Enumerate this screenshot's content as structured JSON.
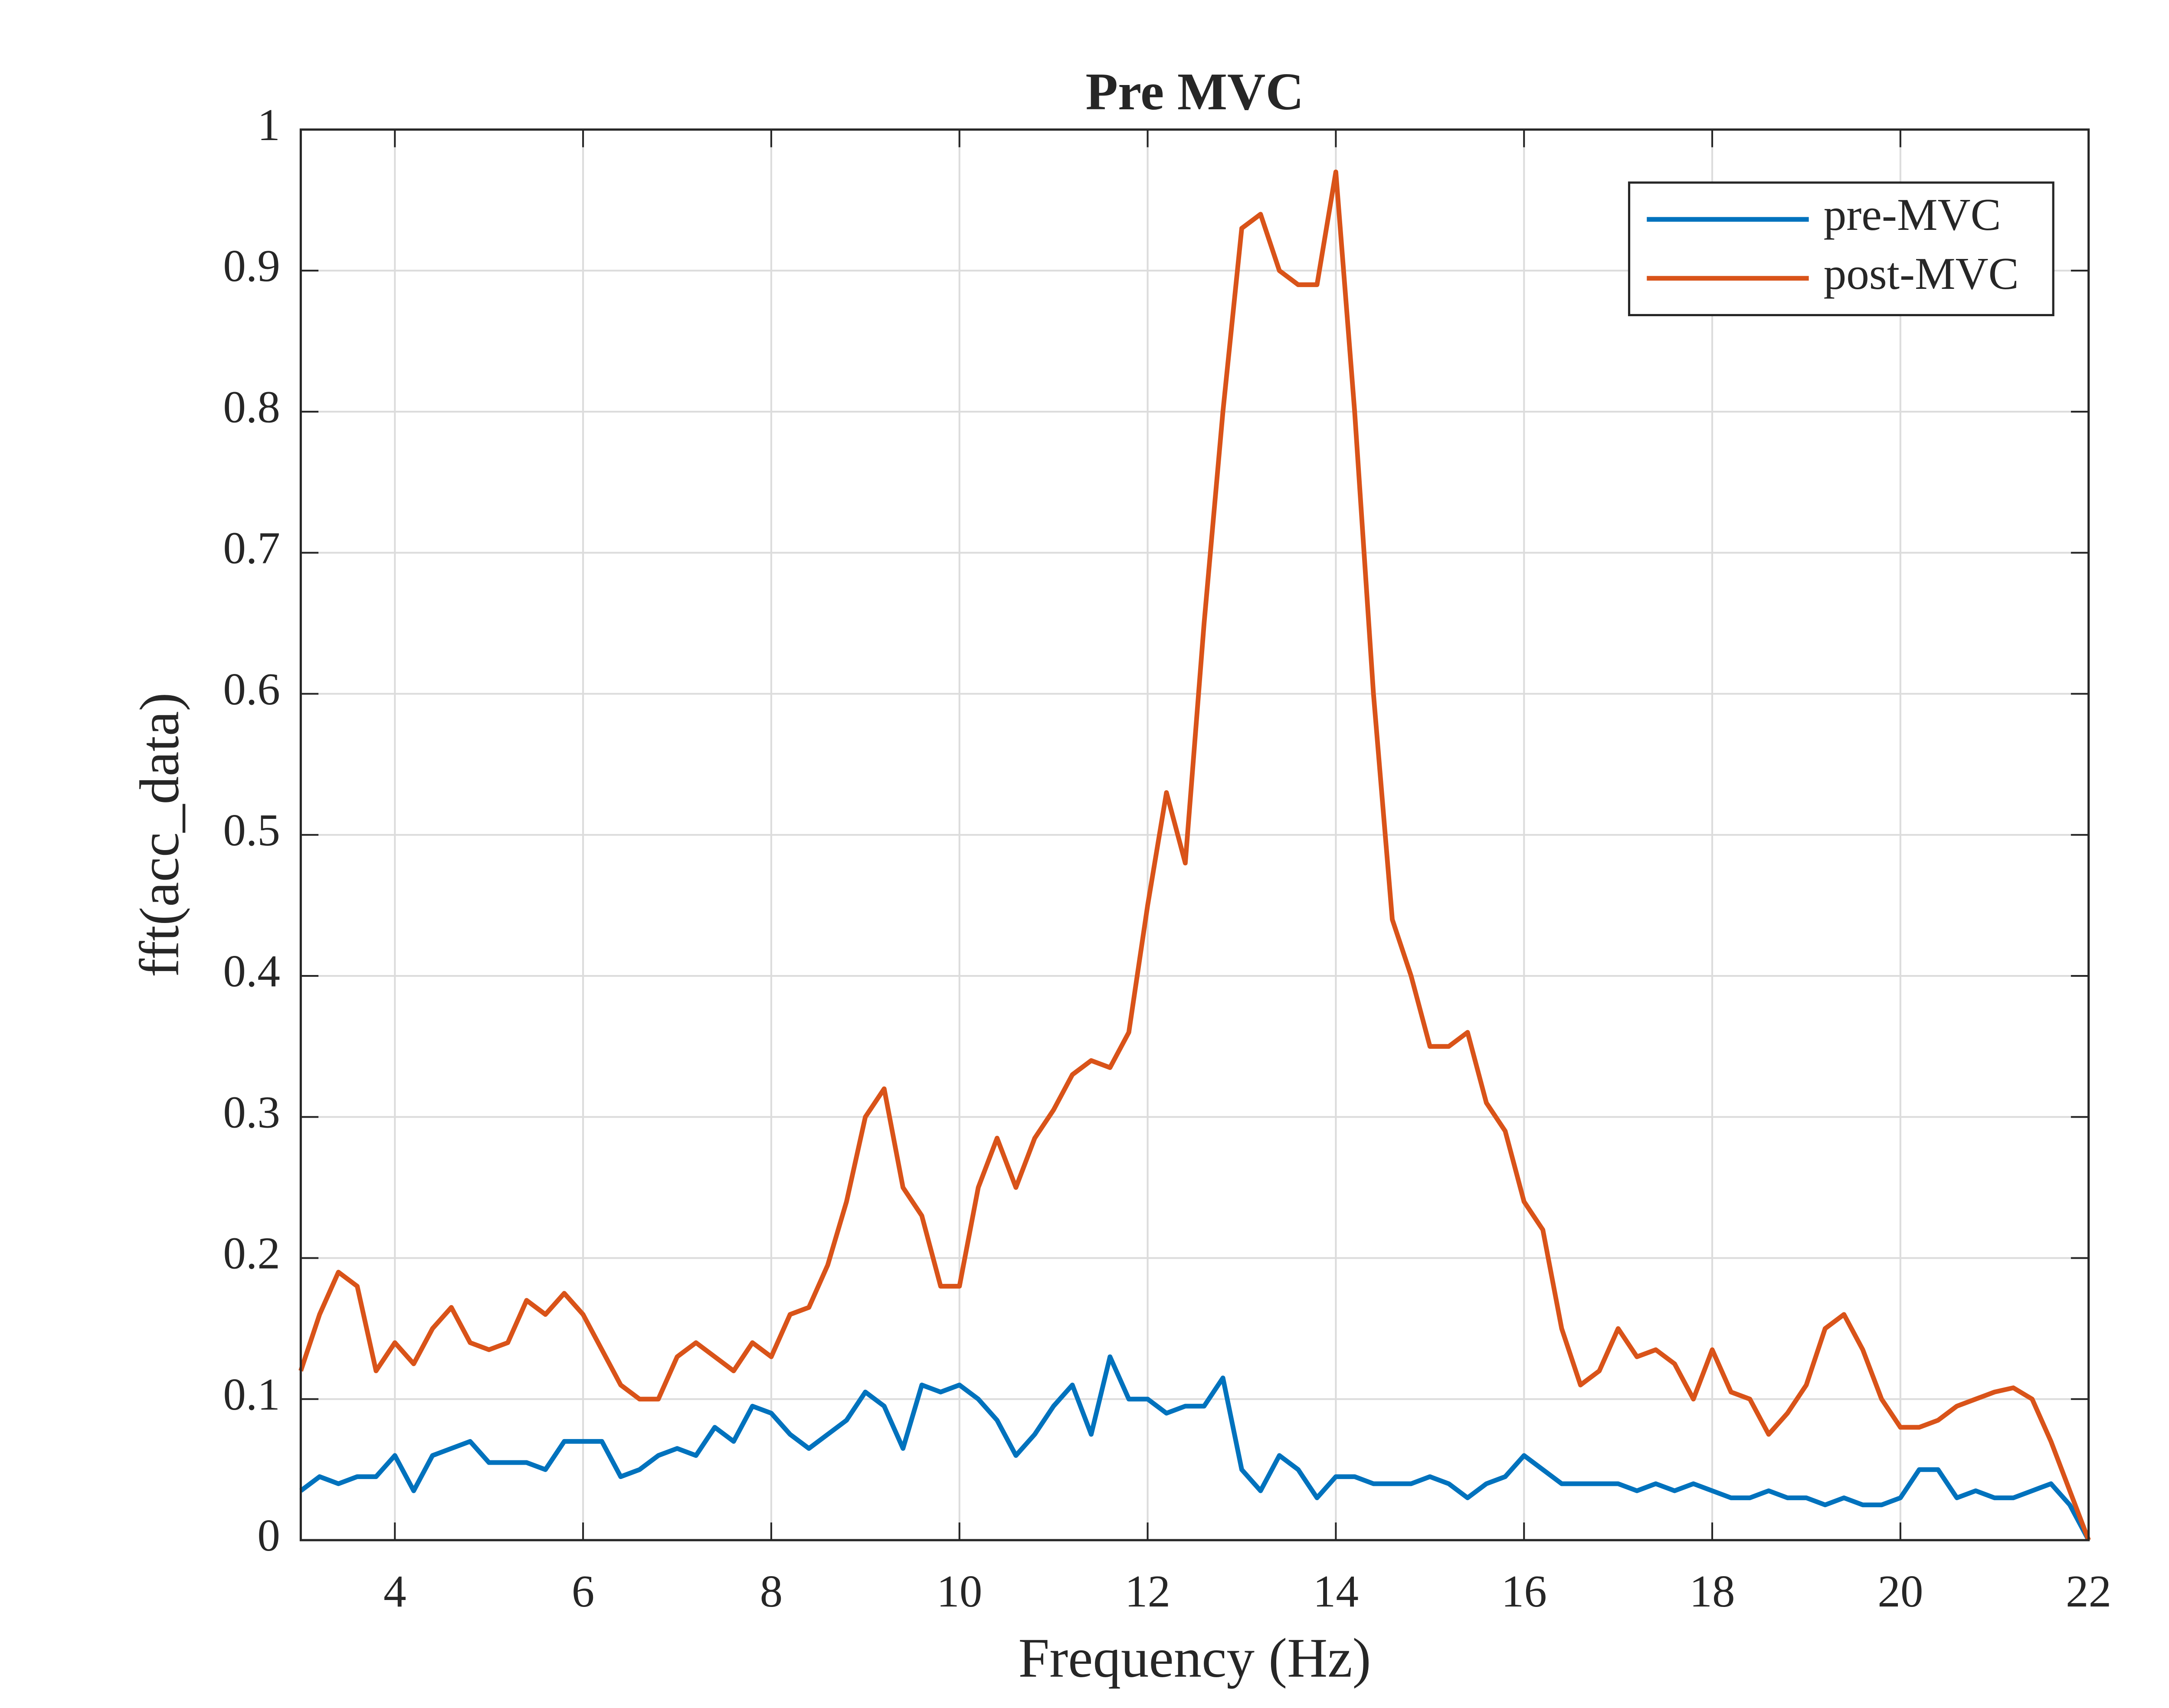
{
  "chart_data": {
    "type": "line",
    "title": "Pre MVC",
    "x_label": "Frequency (Hz)",
    "y_label": "fft(acc_data)",
    "x": [
      3.0,
      3.2,
      3.4,
      3.6,
      3.8,
      4.0,
      4.2,
      4.4,
      4.6,
      4.8,
      5.0,
      5.2,
      5.4,
      5.6,
      5.8,
      6.0,
      6.2,
      6.4,
      6.6,
      6.8,
      7.0,
      7.2,
      7.4,
      7.6,
      7.8,
      8.0,
      8.2,
      8.4,
      8.6,
      8.8,
      9.0,
      9.2,
      9.4,
      9.6,
      9.8,
      10.0,
      10.2,
      10.4,
      10.6,
      10.8,
      11.0,
      11.2,
      11.4,
      11.6,
      11.8,
      12.0,
      12.2,
      12.4,
      12.6,
      12.8,
      13.0,
      13.2,
      13.4,
      13.6,
      13.8,
      14.0,
      14.2,
      14.4,
      14.6,
      14.8,
      15.0,
      15.2,
      15.4,
      15.6,
      15.8,
      16.0,
      16.2,
      16.4,
      16.6,
      16.8,
      17.0,
      17.2,
      17.4,
      17.6,
      17.8,
      18.0,
      18.2,
      18.4,
      18.6,
      18.8,
      19.0,
      19.2,
      19.4,
      19.6,
      19.8,
      20.0,
      20.2,
      20.4,
      20.6,
      20.8,
      21.0,
      21.2,
      21.4,
      21.6,
      21.8,
      22.0
    ],
    "series": [
      {
        "name": "pre-MVC",
        "color": "#0072bd",
        "values": [
          0.035,
          0.045,
          0.04,
          0.045,
          0.045,
          0.06,
          0.035,
          0.06,
          0.065,
          0.07,
          0.055,
          0.055,
          0.055,
          0.05,
          0.07,
          0.07,
          0.07,
          0.045,
          0.05,
          0.06,
          0.065,
          0.06,
          0.08,
          0.07,
          0.095,
          0.09,
          0.075,
          0.065,
          0.075,
          0.085,
          0.105,
          0.095,
          0.065,
          0.11,
          0.105,
          0.11,
          0.1,
          0.085,
          0.06,
          0.075,
          0.095,
          0.11,
          0.075,
          0.13,
          0.1,
          0.1,
          0.09,
          0.095,
          0.095,
          0.115,
          0.05,
          0.035,
          0.06,
          0.05,
          0.03,
          0.045,
          0.045,
          0.04,
          0.04,
          0.04,
          0.045,
          0.04,
          0.03,
          0.04,
          0.045,
          0.06,
          0.05,
          0.04,
          0.04,
          0.04,
          0.04,
          0.035,
          0.04,
          0.035,
          0.04,
          0.035,
          0.03,
          0.03,
          0.035,
          0.03,
          0.03,
          0.025,
          0.03,
          0.025,
          0.025,
          0.03,
          0.05,
          0.05,
          0.03,
          0.035,
          0.03,
          0.03,
          0.035,
          0.04,
          0.025,
          0.0
        ]
      },
      {
        "name": "post-MVC",
        "color": "#d95319",
        "values": [
          0.12,
          0.16,
          0.19,
          0.18,
          0.12,
          0.14,
          0.125,
          0.15,
          0.165,
          0.14,
          0.135,
          0.14,
          0.17,
          0.16,
          0.175,
          0.16,
          0.135,
          0.11,
          0.1,
          0.1,
          0.13,
          0.14,
          0.13,
          0.12,
          0.14,
          0.13,
          0.16,
          0.165,
          0.195,
          0.24,
          0.3,
          0.32,
          0.25,
          0.23,
          0.18,
          0.18,
          0.25,
          0.285,
          0.25,
          0.285,
          0.305,
          0.33,
          0.34,
          0.335,
          0.36,
          0.45,
          0.53,
          0.48,
          0.65,
          0.8,
          0.93,
          0.94,
          0.9,
          0.89,
          0.89,
          0.97,
          0.8,
          0.6,
          0.44,
          0.4,
          0.35,
          0.35,
          0.36,
          0.31,
          0.29,
          0.24,
          0.22,
          0.15,
          0.11,
          0.12,
          0.15,
          0.13,
          0.135,
          0.125,
          0.1,
          0.135,
          0.105,
          0.1,
          0.075,
          0.09,
          0.11,
          0.15,
          0.16,
          0.135,
          0.1,
          0.08,
          0.08,
          0.085,
          0.095,
          0.1,
          0.105,
          0.108,
          0.1,
          0.07,
          0.035,
          0.0
        ]
      }
    ],
    "xlim": [
      3,
      22
    ],
    "xticks": [
      4,
      6,
      8,
      10,
      12,
      14,
      16,
      18,
      20,
      22
    ],
    "ylim": [
      0,
      1
    ],
    "yticks": [
      0,
      0.1,
      0.2,
      0.3,
      0.4,
      0.5,
      0.6,
      0.7,
      0.8,
      0.9,
      1
    ],
    "grid": true,
    "legend": "upper right"
  }
}
